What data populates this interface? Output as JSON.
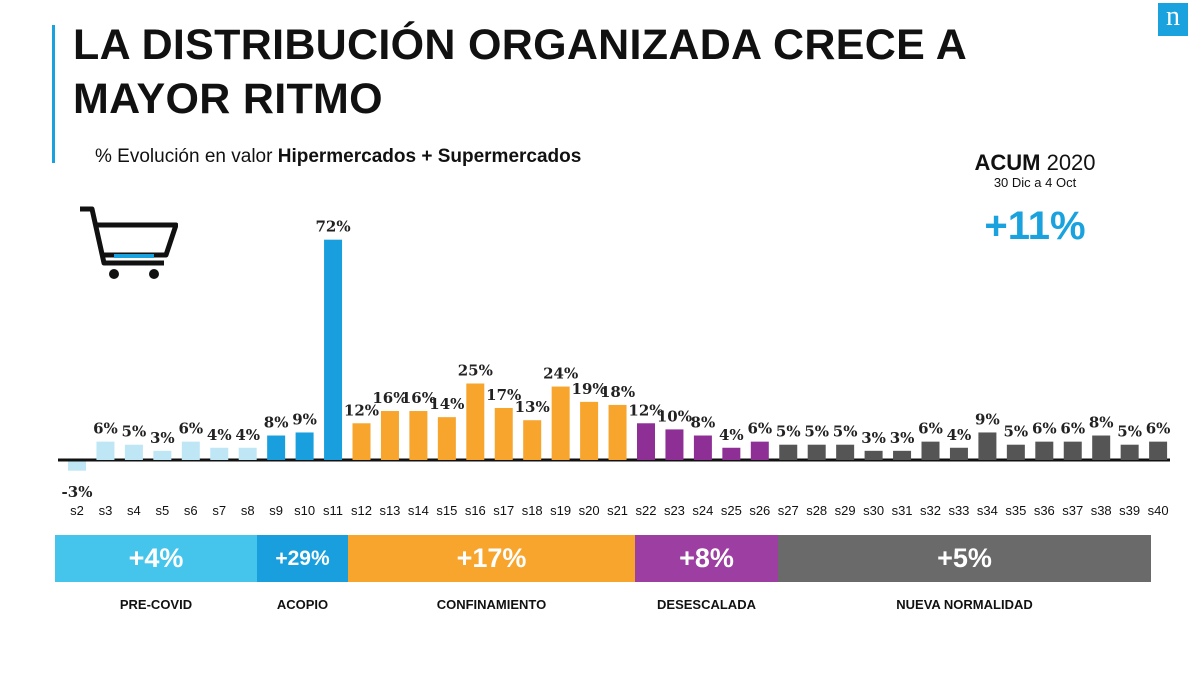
{
  "title": "LA DISTRIBUCIÓN ORGANIZADA CRECE A MAYOR RITMO",
  "subtitle": {
    "prefix": "% Evolución en valor ",
    "bold": "Hipermercados + Supermercados"
  },
  "logo": {
    "letter": "n"
  },
  "acum": {
    "label": "ACUM",
    "year": "2020",
    "period": "30 Dic a 4 Oct",
    "value": "+11%"
  },
  "icons": {
    "cart": "shopping-cart-icon"
  },
  "colors": {
    "precovid": "#bfe6f5",
    "acopio": "#1a9fde",
    "confinamiento": "#f7a52d",
    "desescalada": "#8e2f96",
    "nueva": "#555555",
    "accent": "#1aa2de"
  },
  "chart_data": {
    "type": "bar",
    "categories": [
      "s2",
      "s3",
      "s4",
      "s5",
      "s6",
      "s7",
      "s8",
      "s9",
      "s10",
      "s11",
      "s12",
      "s13",
      "s14",
      "s15",
      "s16",
      "s17",
      "s18",
      "s19",
      "s20",
      "s21",
      "s22",
      "s23",
      "s24",
      "s25",
      "s26",
      "s27",
      "s28",
      "s29",
      "s30",
      "s31",
      "s32",
      "s33",
      "s34",
      "s35",
      "s36",
      "s37",
      "s38",
      "s39",
      "s40"
    ],
    "values": [
      -3,
      6,
      5,
      3,
      6,
      4,
      4,
      8,
      9,
      72,
      12,
      16,
      16,
      14,
      25,
      17,
      13,
      24,
      19,
      18,
      12,
      10,
      8,
      4,
      6,
      5,
      5,
      5,
      3,
      3,
      6,
      4,
      9,
      5,
      6,
      6,
      8,
      5,
      6
    ],
    "labels": [
      "-3%",
      "6%",
      "5%",
      "3%",
      "6%",
      "4%",
      "4%",
      "8%",
      "9%",
      "72%",
      "12%",
      "16%",
      "16%",
      "14%",
      "25%",
      "17%",
      "13%",
      "24%",
      "19%",
      "18%",
      "12%",
      "10%",
      "8%",
      "4%",
      "6%",
      "5%",
      "5%",
      "5%",
      "3%",
      "3%",
      "6%",
      "4%",
      "9%",
      "5%",
      "6%",
      "6%",
      "8%",
      "5%",
      "6%"
    ],
    "phases": [
      {
        "name": "PRE-COVID",
        "value": "+4%",
        "start": 0,
        "end": 6,
        "color": "#bfe6f5",
        "block_color": "#45c5ec"
      },
      {
        "name": "ACOPIO",
        "value": "+29%",
        "start": 7,
        "end": 9,
        "color": "#1a9fde",
        "block_color": "#1a9fde"
      },
      {
        "name": "CONFINAMIENTO",
        "value": "+17%",
        "start": 10,
        "end": 19,
        "color": "#f7a52d",
        "block_color": "#f7a52d"
      },
      {
        "name": "DESESCALADA",
        "value": "+8%",
        "start": 20,
        "end": 24,
        "color": "#8e2f96",
        "block_color": "#9c3ea2"
      },
      {
        "name": "NUEVA NORMALIDAD",
        "value": "+5%",
        "start": 25,
        "end": 38,
        "color": "#555555",
        "block_color": "#6a6a6a"
      }
    ]
  }
}
